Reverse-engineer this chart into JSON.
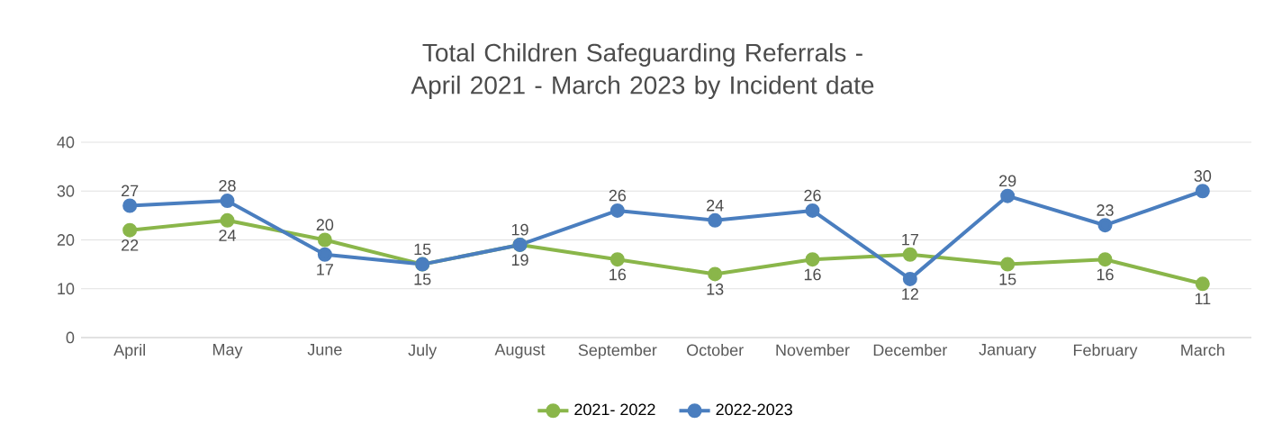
{
  "chart_data": {
    "type": "line",
    "title": "Total Children Safeguarding Referrals - April 2021 - March 2023 by Incident date",
    "categories": [
      "April",
      "May",
      "June",
      "July",
      "August",
      "September",
      "October",
      "November",
      "December",
      "January",
      "February",
      "March"
    ],
    "series": [
      {
        "name": "2021- 2022",
        "color": "#8ab64a",
        "values": [
          22,
          24,
          20,
          15,
          19,
          16,
          13,
          16,
          17,
          15,
          16,
          11
        ]
      },
      {
        "name": "2022-2023",
        "color": "#4a7ebf",
        "values": [
          27,
          28,
          17,
          15,
          19,
          26,
          24,
          26,
          12,
          29,
          23,
          30
        ]
      }
    ],
    "ylim": [
      0,
      40
    ],
    "yticks": [
      0,
      10,
      20,
      30,
      40
    ],
    "grid": "y",
    "legend": "bottom",
    "marker": "circle",
    "line_style": "solid",
    "data_labels": true
  }
}
